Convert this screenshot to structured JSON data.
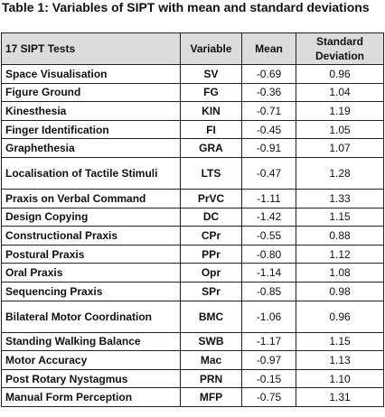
{
  "caption": "Table 1: Variables of SIPT with mean and standard deviations",
  "headers": {
    "test": "17 SIPT Tests",
    "variable": "Variable",
    "mean": "Mean",
    "sd": "Standard Deviation"
  },
  "rows": [
    {
      "test": "Space Visualisation",
      "variable": "SV",
      "mean": "-0.69",
      "sd": "0.96"
    },
    {
      "test": "Figure Ground",
      "variable": "FG",
      "mean": "-0.36",
      "sd": "1.04"
    },
    {
      "test": "Kinesthesia",
      "variable": "KIN",
      "mean": "-0.71",
      "sd": "1.19"
    },
    {
      "test": "Finger Identification",
      "variable": "FI",
      "mean": "-0.45",
      "sd": "1.05"
    },
    {
      "test": "Graphethesia",
      "variable": "GRA",
      "mean": "-0.91",
      "sd": "1.07"
    },
    {
      "test": "Localisation of Tactile Stimuli",
      "variable": "LTS",
      "mean": "-0.47",
      "sd": "1.28"
    },
    {
      "test": "Praxis on Verbal Command",
      "variable": "PrVC",
      "mean": "-1.11",
      "sd": "1.33"
    },
    {
      "test": "Design Copying",
      "variable": "DC",
      "mean": "-1.42",
      "sd": "1.15"
    },
    {
      "test": "Constructional Praxis",
      "variable": "CPr",
      "mean": "-0.55",
      "sd": "0.88"
    },
    {
      "test": "Postural Praxis",
      "variable": "PPr",
      "mean": "-0.80",
      "sd": "1.12"
    },
    {
      "test": "Oral Praxis",
      "variable": "Opr",
      "mean": "-1.14",
      "sd": "1.08"
    },
    {
      "test": "Sequencing Praxis",
      "variable": "SPr",
      "mean": "-0.85",
      "sd": "0.98"
    },
    {
      "test": "Bilateral Motor Coordination",
      "variable": "BMC",
      "mean": "-1.06",
      "sd": "0.96"
    },
    {
      "test": "Standing Walking Balance",
      "variable": "SWB",
      "mean": "-1.17",
      "sd": "1.15"
    },
    {
      "test": "Motor Accuracy",
      "variable": "Mac",
      "mean": "-0.97",
      "sd": "1.13"
    },
    {
      "test": "Post Rotary Nystagmus",
      "variable": "PRN",
      "mean": "-0.15",
      "sd": "1.10"
    },
    {
      "test": "Manual Form Perception",
      "variable": "MFP",
      "mean": "-0.75",
      "sd": "1.31"
    }
  ]
}
